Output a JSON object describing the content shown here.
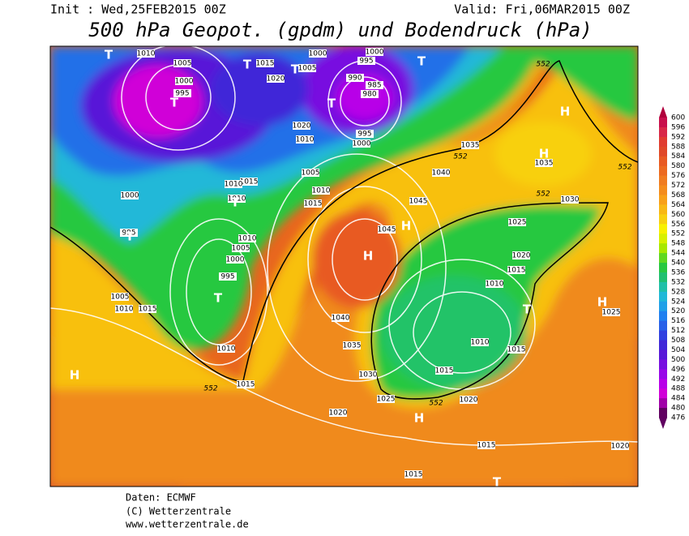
{
  "header": {
    "init": "Init : Wed,25FEB2015 00Z",
    "valid": "Valid: Fri,06MAR2015 00Z",
    "title": "500 hPa Geopot. (gpdm) und Bodendruck (hPa)"
  },
  "colorbar": {
    "levels": [
      600,
      596,
      592,
      588,
      584,
      580,
      576,
      572,
      568,
      564,
      560,
      556,
      552,
      548,
      544,
      540,
      536,
      532,
      528,
      524,
      520,
      516,
      512,
      508,
      504,
      500,
      496,
      492,
      488,
      484,
      480,
      476
    ],
    "colors": [
      "#b0003c",
      "#c8104c",
      "#d82848",
      "#e03c30",
      "#e04828",
      "#e85a22",
      "#ec6a20",
      "#f07c20",
      "#f48c1c",
      "#f8a018",
      "#f8b814",
      "#f8d010",
      "#f8f000",
      "#d8f000",
      "#a8e800",
      "#60d820",
      "#28c840",
      "#20c070",
      "#20c0a8",
      "#20b8d8",
      "#20a0e8",
      "#2080f0",
      "#2860e8",
      "#3040e0",
      "#4028d8",
      "#5818d8",
      "#7810e0",
      "#9808e8",
      "#b800e8",
      "#d000d8",
      "#a000a8",
      "#600060"
    ]
  },
  "map": {
    "labels": [
      1010,
      1005,
      1000,
      995,
      1015,
      1020,
      1000,
      1005,
      995,
      1000,
      990,
      985,
      980,
      995,
      1000,
      1020,
      1010,
      1005,
      1010,
      1015,
      1015,
      1010,
      1010,
      1000,
      995,
      1010,
      1005,
      1000,
      995,
      1005,
      1010,
      1015,
      1010,
      1015,
      1040,
      1035,
      1030,
      1025,
      1020,
      1045,
      1045,
      1040,
      1035,
      1035,
      1030,
      1025,
      1020,
      1015,
      1010,
      1010,
      1015,
      1015,
      1020,
      1025,
      1015,
      1015,
      1020,
      552,
      552,
      552,
      552,
      552,
      552,
      "T",
      "T",
      "T",
      "T",
      "T",
      "T",
      "T",
      "T",
      "T",
      "H",
      "H",
      "H",
      "H",
      "H",
      "H",
      "H",
      "T",
      "T"
    ]
  },
  "footer": {
    "source": "Daten: ECMWF",
    "copyright": "(C) Wetterzentrale",
    "url": "www.wetterzentrale.de"
  }
}
